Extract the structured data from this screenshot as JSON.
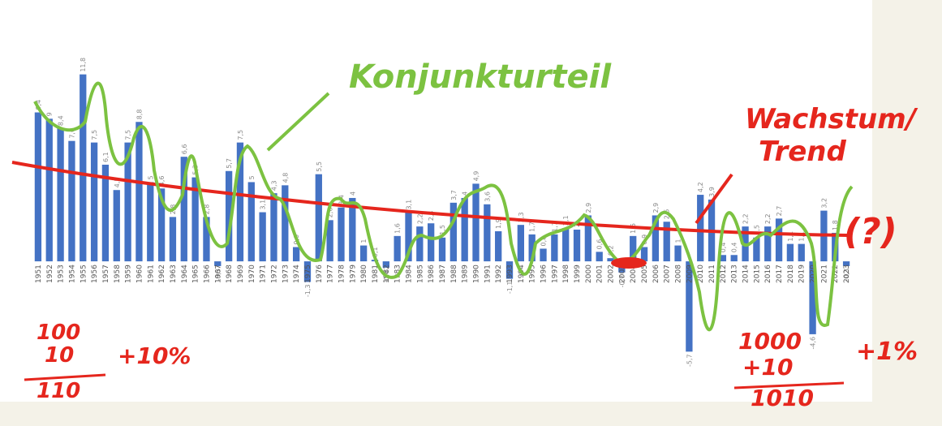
{
  "chart_data": {
    "type": "bar",
    "categories": [
      "1951",
      "1952",
      "1953",
      "1954",
      "1955",
      "1956",
      "1957",
      "1958",
      "1959",
      "1960",
      "1961",
      "1962",
      "1963",
      "1964",
      "1965",
      "1966",
      "1967",
      "1968",
      "1969",
      "1970",
      "1971",
      "1972",
      "1973",
      "1974",
      "1975",
      "1976",
      "1977",
      "1978",
      "1979",
      "1980",
      "1981",
      "1982",
      "1983",
      "1984",
      "1985",
      "1986",
      "1987",
      "1988",
      "1989",
      "1990",
      "1991",
      "1992",
      "1993",
      "1994",
      "1995",
      "1996",
      "1997",
      "1998",
      "1999",
      "2000",
      "2001",
      "2002",
      "2003",
      "2004",
      "2005",
      "2006",
      "2007",
      "2008",
      "2009",
      "2010",
      "2011",
      "2012",
      "2013",
      "2014",
      "2015",
      "2016",
      "2017",
      "2018",
      "2019",
      "2020",
      "2021",
      "2022",
      "2023"
    ],
    "values": [
      9.4,
      9,
      8.4,
      7.6,
      11.8,
      7.5,
      6.1,
      4.5,
      7.5,
      8.8,
      5,
      4.6,
      2.8,
      6.6,
      5.3,
      2.8,
      -0.3,
      5.7,
      7.5,
      5,
      3.1,
      4.3,
      4.8,
      0.9,
      -1.3,
      5.5,
      2.6,
      3.4,
      4,
      1,
      0.1,
      -0.4,
      1.6,
      3.1,
      2.2,
      2.4,
      1.5,
      3.7,
      4,
      4.9,
      3.6,
      1.9,
      -1.1,
      2.3,
      1.7,
      0.8,
      1.7,
      2.1,
      2,
      2.9,
      0.6,
      0.2,
      -0.7,
      1.6,
      0.9,
      2.9,
      2.5,
      1,
      -5.7,
      4.2,
      3.9,
      0.4,
      0.4,
      2.2,
      1.5,
      2.2,
      2.7,
      1.1,
      1.1,
      -4.6,
      3.2,
      1.8,
      -0.3
    ],
    "value_labels": [
      "9,4",
      "9",
      "8,4",
      "7,6",
      "11,8",
      "7,5",
      "6,1",
      "4,5",
      "7,5",
      "8,8",
      "5",
      "4,6",
      "2,8",
      "6,6",
      "5,3",
      "2,8",
      "-0,3",
      "5,7",
      "7,5",
      "5",
      "3,1",
      "4,3",
      "4,8",
      "0,9",
      "-1,3",
      "5,5",
      "2,6",
      "3,4",
      "4",
      "1",
      "0,1",
      "-0,4",
      "1,6",
      "3,1",
      "2,2",
      "2,4",
      "1,5",
      "3,7",
      "4",
      "4,9",
      "3,6",
      "1,9",
      "-1,1",
      "2,3",
      "1,7",
      "0,8",
      "1,7",
      "2,1",
      "2",
      "2,9",
      "0,6",
      "0,2",
      "-0,7",
      "1,6",
      "0,9",
      "2,9",
      "2,5",
      "1",
      "-5,7",
      "4,2",
      "3,9",
      "0,4",
      "0,4",
      "2,2",
      "1,5",
      "2,2",
      "2,7",
      "1,1",
      "1,1",
      "-4,6",
      "3,2",
      "1,8",
      "-0,3"
    ],
    "color": "#4472c4",
    "ylim": [
      -6.5,
      12.5
    ],
    "annotations": [
      {
        "text": "Konjunkturteil",
        "color": "#7cc241"
      },
      {
        "text": "Wachstum/",
        "color": "#e5261d"
      },
      {
        "text": "Trend",
        "color": "#e5261d"
      },
      {
        "text": "(?)",
        "color": "#e5261d"
      },
      {
        "text": "100",
        "color": "#e5261d"
      },
      {
        "text": "10",
        "color": "#e5261d"
      },
      {
        "text": "110",
        "color": "#e5261d"
      },
      {
        "text": "+10%",
        "color": "#e5261d"
      },
      {
        "text": "1000",
        "color": "#e5261d"
      },
      {
        "text": "+10",
        "color": "#e5261d"
      },
      {
        "text": "1010",
        "color": "#e5261d"
      },
      {
        "text": "+1%",
        "color": "#e5261d"
      }
    ]
  }
}
